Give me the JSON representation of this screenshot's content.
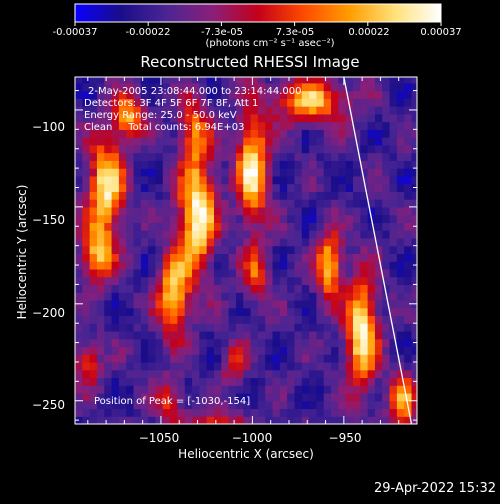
{
  "colorbar": {
    "ticks": [
      "-0.00037",
      "-0.00022",
      "-7.3e-05",
      "7.3e-05",
      "0.00022",
      "0.00037"
    ],
    "unit_label": "(photons cm⁻² s⁻¹ asec⁻²)",
    "stops": [
      "#0a00ff",
      "#1a0d8a",
      "#4b2593",
      "#8a1f7a",
      "#c4001a",
      "#ff4a00",
      "#ff9d00",
      "#ffe27a",
      "#ffffff"
    ]
  },
  "annotations": {
    "time_range": "2-May-2005 23:08:44.000 to 23:14:44.000",
    "detectors": "Detectors: 3F 4F 5F 6F 7F 8F, Att 1",
    "energy_range": "Energy Range: 25.0 - 50.0 keV",
    "method_counts": "Clean     Total counts: 6.94E+03",
    "peak_position": "Position of Peak = [-1030,-154]"
  },
  "footer": {
    "timestamp": "29-Apr-2022 15:32"
  },
  "chart_data": {
    "type": "heatmap",
    "title": "Reconstructed RHESSI Image",
    "xlabel": "Heliocentric X (arcsec)",
    "ylabel": "Heliocentric Y (arcsec)",
    "xlim": [
      -1097,
      -910
    ],
    "ylim": [
      -262,
      -83
    ],
    "x_ticks": [
      -1050,
      -1000,
      -950
    ],
    "y_ticks": [
      -100,
      -150,
      -200,
      -250
    ],
    "tick_labels_x": [
      "−1050",
      "−1000",
      "−950"
    ],
    "tick_labels_y": [
      "−100",
      "−150",
      "−200",
      "−250"
    ],
    "value_range": [
      -0.00037,
      0.00037
    ],
    "peak": [
      -1030,
      -154
    ],
    "limb_line": [
      [
        -950,
        -83
      ],
      [
        -913,
        -262
      ]
    ],
    "sources": [
      {
        "x": -1080,
        "y": -140,
        "sx": 7,
        "sy": 18,
        "amp": 0.9
      },
      {
        "x": -1085,
        "y": -175,
        "sx": 6,
        "sy": 10,
        "amp": 0.7
      },
      {
        "x": -1068,
        "y": -103,
        "sx": 6,
        "sy": 8,
        "amp": 0.7
      },
      {
        "x": -1030,
        "y": -154,
        "sx": 7,
        "sy": 20,
        "amp": 1.0
      },
      {
        "x": -1032,
        "y": -110,
        "sx": 6,
        "sy": 12,
        "amp": 0.55
      },
      {
        "x": -1043,
        "y": -195,
        "sx": 6,
        "sy": 15,
        "amp": 0.85
      },
      {
        "x": -1045,
        "y": -250,
        "sx": 5,
        "sy": 8,
        "amp": 0.45
      },
      {
        "x": -1000,
        "y": -130,
        "sx": 6,
        "sy": 20,
        "amp": 0.9
      },
      {
        "x": -998,
        "y": -185,
        "sx": 5,
        "sy": 10,
        "amp": 0.5
      },
      {
        "x": -1010,
        "y": -230,
        "sx": 5,
        "sy": 8,
        "amp": 0.4
      },
      {
        "x": -968,
        "y": -95,
        "sx": 14,
        "sy": 8,
        "amp": 0.75
      },
      {
        "x": -958,
        "y": -180,
        "sx": 5,
        "sy": 12,
        "amp": 0.8
      },
      {
        "x": -940,
        "y": -215,
        "sx": 6,
        "sy": 20,
        "amp": 0.95
      },
      {
        "x": -918,
        "y": -250,
        "sx": 5,
        "sy": 10,
        "amp": 0.7
      },
      {
        "x": -1090,
        "y": -230,
        "sx": 5,
        "sy": 8,
        "amp": 0.5
      },
      {
        "x": -1020,
        "y": -262,
        "sx": 12,
        "sy": 5,
        "amp": 0.45
      }
    ]
  }
}
